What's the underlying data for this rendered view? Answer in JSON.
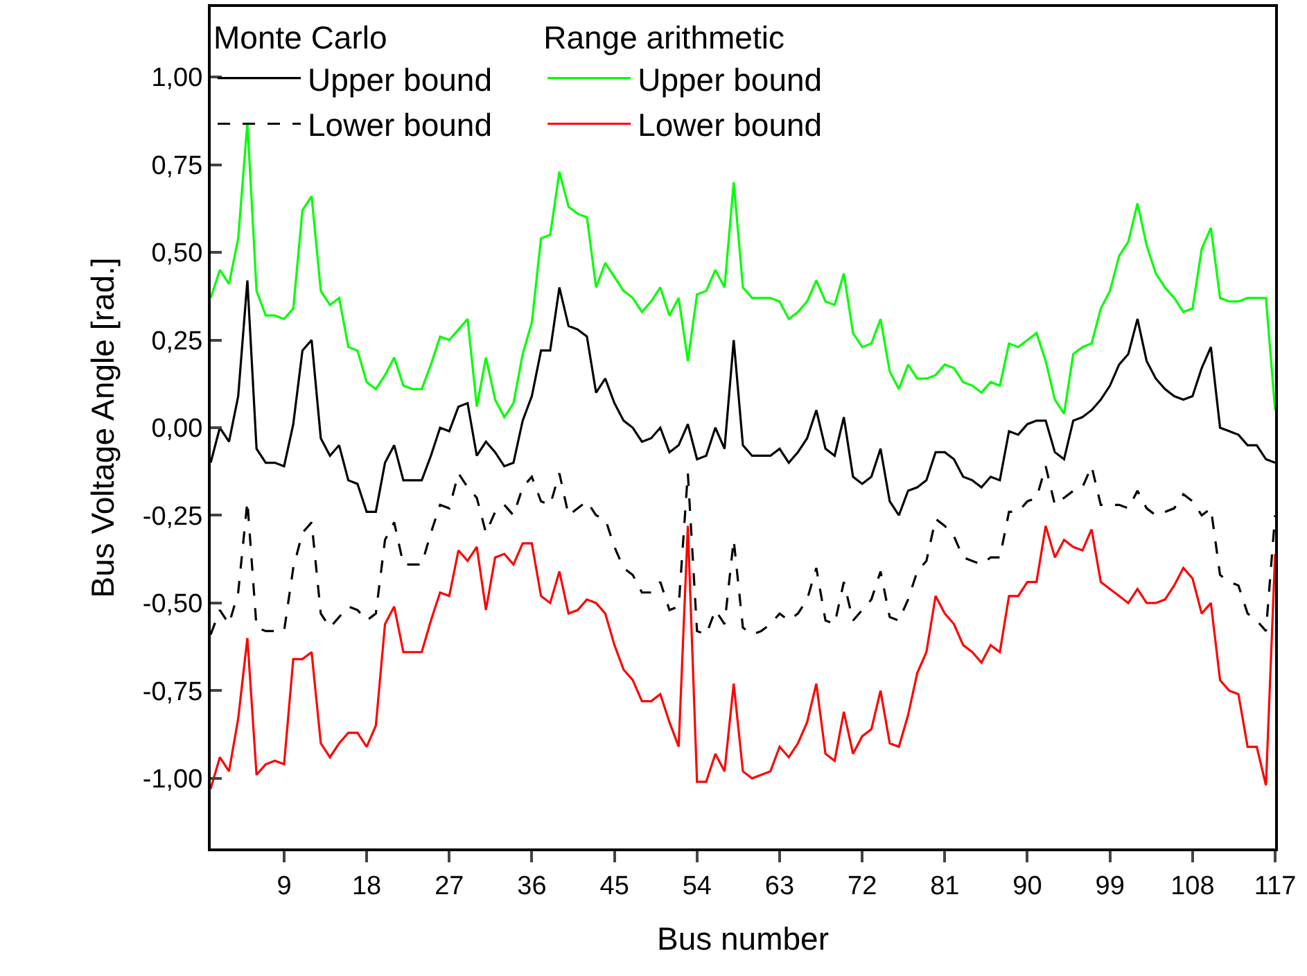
{
  "chart_data": {
    "type": "line",
    "xlabel": "Bus number",
    "ylabel": "Bus Voltage Angle [rad.]",
    "annotations": [
      "Monte Carlo",
      "Range arithmetic"
    ],
    "x": [
      1,
      2,
      3,
      4,
      5,
      6,
      7,
      8,
      9,
      10,
      11,
      12,
      13,
      14,
      15,
      16,
      17,
      18,
      19,
      20,
      21,
      22,
      23,
      24,
      25,
      26,
      27,
      28,
      29,
      30,
      31,
      32,
      33,
      34,
      35,
      36,
      37,
      38,
      39,
      40,
      41,
      42,
      43,
      44,
      45,
      46,
      47,
      48,
      49,
      50,
      51,
      52,
      53,
      54,
      55,
      56,
      57,
      58,
      59,
      60,
      61,
      62,
      63,
      64,
      65,
      66,
      67,
      68,
      69,
      70,
      71,
      72,
      73,
      74,
      75,
      76,
      77,
      78,
      79,
      80,
      81,
      82,
      83,
      84,
      85,
      86,
      87,
      88,
      89,
      90,
      91,
      92,
      93,
      94,
      95,
      96,
      97,
      98,
      99,
      100,
      101,
      102,
      103,
      104,
      105,
      106,
      107,
      108,
      109,
      110,
      111,
      112,
      113,
      114,
      115,
      116,
      117
    ],
    "xlim": [
      1,
      117
    ],
    "xticks": [
      9,
      18,
      27,
      36,
      45,
      54,
      63,
      72,
      81,
      90,
      99,
      108,
      117
    ],
    "ylim": [
      -1.2,
      1.2
    ],
    "yticks": [
      {
        "value": -1,
        "label": "-1,00"
      },
      {
        "value": -0.75,
        "label": "-0,75"
      },
      {
        "value": -0.5,
        "label": "-0,50"
      },
      {
        "value": -0.25,
        "label": "-0,25"
      },
      {
        "value": 0,
        "label": "0,00"
      },
      {
        "value": 0.25,
        "label": "0,25"
      },
      {
        "value": 0.5,
        "label": "0,50"
      },
      {
        "value": 0.75,
        "label": "0,75"
      },
      {
        "value": 1,
        "label": "1,00"
      }
    ],
    "grid": false,
    "legend": "top left",
    "marker": "none",
    "series": [
      {
        "name": "Upper bound",
        "color": "#000000",
        "line_style": "solid",
        "values": [
          -0.1,
          0.0,
          -0.04,
          0.09,
          0.42,
          -0.06,
          -0.1,
          -0.1,
          -0.11,
          0.01,
          0.22,
          0.25,
          -0.03,
          -0.08,
          -0.05,
          -0.15,
          -0.16,
          -0.24,
          -0.24,
          -0.1,
          -0.05,
          -0.15,
          -0.15,
          -0.15,
          -0.08,
          0.0,
          -0.01,
          0.06,
          0.07,
          -0.08,
          -0.04,
          -0.07,
          -0.11,
          -0.1,
          0.02,
          0.09,
          0.22,
          0.22,
          0.4,
          0.29,
          0.28,
          0.26,
          0.1,
          0.14,
          0.07,
          0.02,
          0.0,
          -0.04,
          -0.03,
          0.0,
          -0.07,
          -0.05,
          0.01,
          -0.09,
          -0.08,
          0.0,
          -0.06,
          0.25,
          -0.05,
          -0.08,
          -0.08,
          -0.08,
          -0.06,
          -0.1,
          -0.07,
          -0.03,
          0.05,
          -0.06,
          -0.08,
          0.03,
          -0.14,
          -0.16,
          -0.14,
          -0.06,
          -0.21,
          -0.25,
          -0.18,
          -0.17,
          -0.15,
          -0.07,
          -0.07,
          -0.09,
          -0.14,
          -0.15,
          -0.17,
          -0.14,
          -0.15,
          -0.01,
          -0.02,
          0.01,
          0.02,
          0.02,
          -0.07,
          -0.09,
          0.02,
          0.03,
          0.05,
          0.08,
          0.12,
          0.18,
          0.21,
          0.31,
          0.19,
          0.14,
          0.11,
          0.09,
          0.08,
          0.09,
          0.17,
          0.23,
          0.0,
          -0.01,
          -0.02,
          -0.05,
          -0.05,
          -0.09,
          -0.1
        ]
      },
      {
        "name": "Lower bound",
        "color": "#000000",
        "line_style": "dashed",
        "values": [
          -0.59,
          -0.52,
          -0.56,
          -0.47,
          -0.21,
          -0.57,
          -0.58,
          -0.58,
          -0.58,
          -0.4,
          -0.3,
          -0.27,
          -0.53,
          -0.57,
          -0.54,
          -0.51,
          -0.52,
          -0.55,
          -0.53,
          -0.32,
          -0.27,
          -0.39,
          -0.39,
          -0.39,
          -0.3,
          -0.22,
          -0.23,
          -0.13,
          -0.17,
          -0.2,
          -0.3,
          -0.24,
          -0.22,
          -0.25,
          -0.17,
          -0.14,
          -0.21,
          -0.22,
          -0.13,
          -0.25,
          -0.23,
          -0.21,
          -0.25,
          -0.26,
          -0.34,
          -0.4,
          -0.42,
          -0.47,
          -0.47,
          -0.44,
          -0.52,
          -0.51,
          -0.13,
          -0.58,
          -0.59,
          -0.52,
          -0.56,
          -0.32,
          -0.57,
          -0.59,
          -0.58,
          -0.56,
          -0.53,
          -0.55,
          -0.53,
          -0.49,
          -0.4,
          -0.55,
          -0.56,
          -0.44,
          -0.55,
          -0.52,
          -0.49,
          -0.41,
          -0.54,
          -0.55,
          -0.49,
          -0.41,
          -0.38,
          -0.26,
          -0.28,
          -0.31,
          -0.37,
          -0.38,
          -0.39,
          -0.37,
          -0.37,
          -0.24,
          -0.24,
          -0.21,
          -0.2,
          -0.11,
          -0.22,
          -0.2,
          -0.18,
          -0.17,
          -0.11,
          -0.22,
          -0.22,
          -0.22,
          -0.23,
          -0.18,
          -0.23,
          -0.25,
          -0.24,
          -0.23,
          -0.19,
          -0.21,
          -0.25,
          -0.23,
          -0.42,
          -0.44,
          -0.45,
          -0.53,
          -0.55,
          -0.58,
          -0.25
        ]
      },
      {
        "name": "Upper bound",
        "color": "#00ff00",
        "line_style": "solid",
        "values": [
          0.37,
          0.45,
          0.41,
          0.54,
          0.87,
          0.39,
          0.32,
          0.32,
          0.31,
          0.34,
          0.62,
          0.66,
          0.39,
          0.35,
          0.37,
          0.23,
          0.22,
          0.13,
          0.11,
          0.15,
          0.2,
          0.12,
          0.11,
          0.11,
          0.18,
          0.26,
          0.25,
          0.28,
          0.31,
          0.06,
          0.2,
          0.08,
          0.03,
          0.07,
          0.21,
          0.3,
          0.54,
          0.55,
          0.73,
          0.63,
          0.61,
          0.6,
          0.4,
          0.47,
          0.43,
          0.39,
          0.37,
          0.33,
          0.36,
          0.4,
          0.32,
          0.37,
          0.19,
          0.38,
          0.39,
          0.45,
          0.4,
          0.7,
          0.4,
          0.37,
          0.37,
          0.37,
          0.36,
          0.31,
          0.33,
          0.36,
          0.42,
          0.36,
          0.35,
          0.44,
          0.27,
          0.23,
          0.24,
          0.31,
          0.16,
          0.11,
          0.18,
          0.14,
          0.14,
          0.15,
          0.18,
          0.17,
          0.13,
          0.12,
          0.1,
          0.13,
          0.12,
          0.24,
          0.23,
          0.25,
          0.27,
          0.19,
          0.08,
          0.04,
          0.21,
          0.23,
          0.24,
          0.34,
          0.39,
          0.49,
          0.53,
          0.64,
          0.52,
          0.44,
          0.4,
          0.37,
          0.33,
          0.34,
          0.51,
          0.57,
          0.37,
          0.36,
          0.36,
          0.37,
          0.37,
          0.37,
          0.05
        ]
      },
      {
        "name": "Lower bound",
        "color": "#ff0000",
        "line_style": "solid",
        "values": [
          -1.03,
          -0.94,
          -0.98,
          -0.83,
          -0.6,
          -0.99,
          -0.96,
          -0.95,
          -0.96,
          -0.66,
          -0.66,
          -0.64,
          -0.9,
          -0.94,
          -0.9,
          -0.87,
          -0.87,
          -0.91,
          -0.85,
          -0.56,
          -0.51,
          -0.64,
          -0.64,
          -0.64,
          -0.55,
          -0.47,
          -0.48,
          -0.35,
          -0.38,
          -0.34,
          -0.52,
          -0.37,
          -0.36,
          -0.39,
          -0.33,
          -0.33,
          -0.48,
          -0.5,
          -0.41,
          -0.53,
          -0.52,
          -0.49,
          -0.5,
          -0.53,
          -0.62,
          -0.69,
          -0.72,
          -0.78,
          -0.78,
          -0.76,
          -0.84,
          -0.91,
          -0.28,
          -1.01,
          -1.01,
          -0.93,
          -0.98,
          -0.73,
          -0.98,
          -1.0,
          -0.99,
          -0.98,
          -0.91,
          -0.94,
          -0.9,
          -0.84,
          -0.73,
          -0.93,
          -0.95,
          -0.81,
          -0.93,
          -0.88,
          -0.86,
          -0.75,
          -0.9,
          -0.91,
          -0.82,
          -0.7,
          -0.64,
          -0.48,
          -0.53,
          -0.56,
          -0.62,
          -0.64,
          -0.67,
          -0.62,
          -0.64,
          -0.48,
          -0.48,
          -0.44,
          -0.44,
          -0.28,
          -0.37,
          -0.32,
          -0.34,
          -0.35,
          -0.29,
          -0.44,
          -0.46,
          -0.48,
          -0.5,
          -0.46,
          -0.5,
          -0.5,
          -0.49,
          -0.45,
          -0.4,
          -0.43,
          -0.53,
          -0.5,
          -0.72,
          -0.75,
          -0.76,
          -0.91,
          -0.91,
          -1.02,
          -0.36
        ]
      }
    ]
  }
}
